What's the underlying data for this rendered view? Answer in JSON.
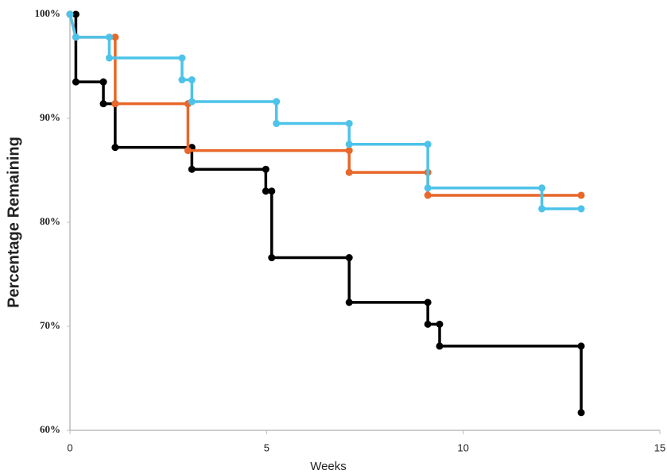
{
  "chart_data": {
    "type": "line",
    "xlabel": "Weeks",
    "ylabel": "Percentage Remaining",
    "xlim": [
      0,
      15
    ],
    "xticks": [
      0,
      5,
      10,
      15
    ],
    "ylim": [
      60,
      100
    ],
    "yticks": [
      {
        "value": 60,
        "label": "60%"
      },
      {
        "value": 70,
        "label": "70%"
      },
      {
        "value": 80,
        "label": "80%"
      },
      {
        "value": 90,
        "label": "90%"
      },
      {
        "value": 100,
        "label": "100%"
      }
    ],
    "grid": false,
    "series": [
      {
        "color": "#000000",
        "x": [
          0,
          0.15,
          0.15,
          0.85,
          0.85,
          1.15,
          1.15,
          3.1,
          3.1,
          4.98,
          4.98,
          5.13,
          5.13,
          7.1,
          7.1,
          9.1,
          9.1,
          9.4,
          9.4,
          13,
          13
        ],
        "values": [
          100,
          100,
          93.5,
          93.5,
          91.4,
          91.4,
          87.2,
          87.2,
          85.1,
          85.1,
          83.0,
          83.0,
          76.6,
          76.6,
          72.3,
          72.3,
          70.2,
          70.2,
          68.1,
          68.1,
          61.7
        ]
      },
      {
        "color": "#e8672a",
        "x": [
          0,
          0.15,
          1.15,
          1.15,
          3.0,
          3.0,
          7.1,
          7.1,
          9.1,
          9.1,
          13
        ],
        "values": [
          100,
          97.8,
          97.8,
          91.4,
          91.4,
          86.9,
          86.9,
          84.8,
          84.8,
          82.6,
          82.6
        ]
      },
      {
        "color": "#4dc3ea",
        "x": [
          0,
          0.15,
          1.0,
          1.0,
          2.85,
          2.85,
          3.1,
          3.1,
          5.25,
          5.25,
          7.1,
          7.1,
          9.1,
          9.1,
          12,
          12,
          13
        ],
        "values": [
          100,
          97.8,
          97.8,
          95.8,
          95.8,
          93.7,
          93.7,
          91.6,
          91.6,
          89.5,
          89.5,
          87.5,
          87.5,
          83.3,
          83.3,
          81.3,
          81.3
        ]
      }
    ]
  }
}
